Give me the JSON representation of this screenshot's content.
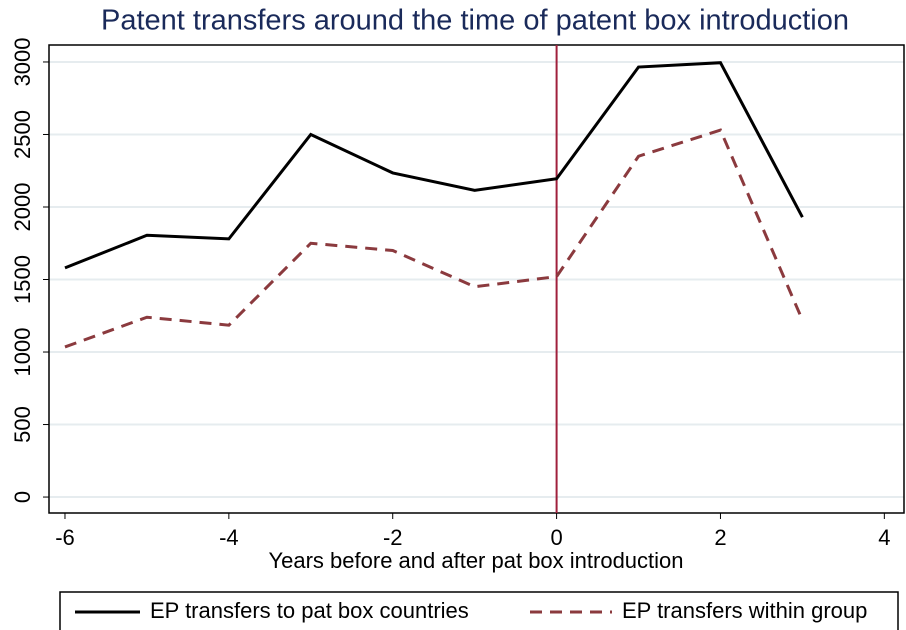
{
  "chart_data": {
    "type": "line",
    "title": "Patent transfers around the time of patent box introduction",
    "x_label": "Years before and after pat box introduction",
    "x": [
      -6,
      -5,
      -4,
      -3,
      -2,
      -1,
      0,
      1,
      2,
      3
    ],
    "series": [
      {
        "name": "EP transfers to pat box countries",
        "color": "#000000",
        "line_style": "solid",
        "values": [
          1580,
          1805,
          1780,
          2500,
          2235,
          2115,
          2195,
          2965,
          2995,
          1930
        ]
      },
      {
        "name": "EP transfers within group",
        "color": "#8b3a3e",
        "line_style": "dashed",
        "values": [
          1035,
          1240,
          1185,
          1750,
          1700,
          1450,
          1520,
          2350,
          2530,
          1220
        ]
      }
    ],
    "xlim": [
      -6.195,
      4.24
    ],
    "xticks": [
      -6,
      -4,
      -2,
      0,
      2,
      4
    ],
    "ylim": [
      -110,
      3117
    ],
    "yticks": [
      0,
      500,
      1000,
      1500,
      2000,
      2500,
      3000
    ],
    "grid": true,
    "vline": 0,
    "vline_color": "#a0203c",
    "legend": "bottom"
  }
}
